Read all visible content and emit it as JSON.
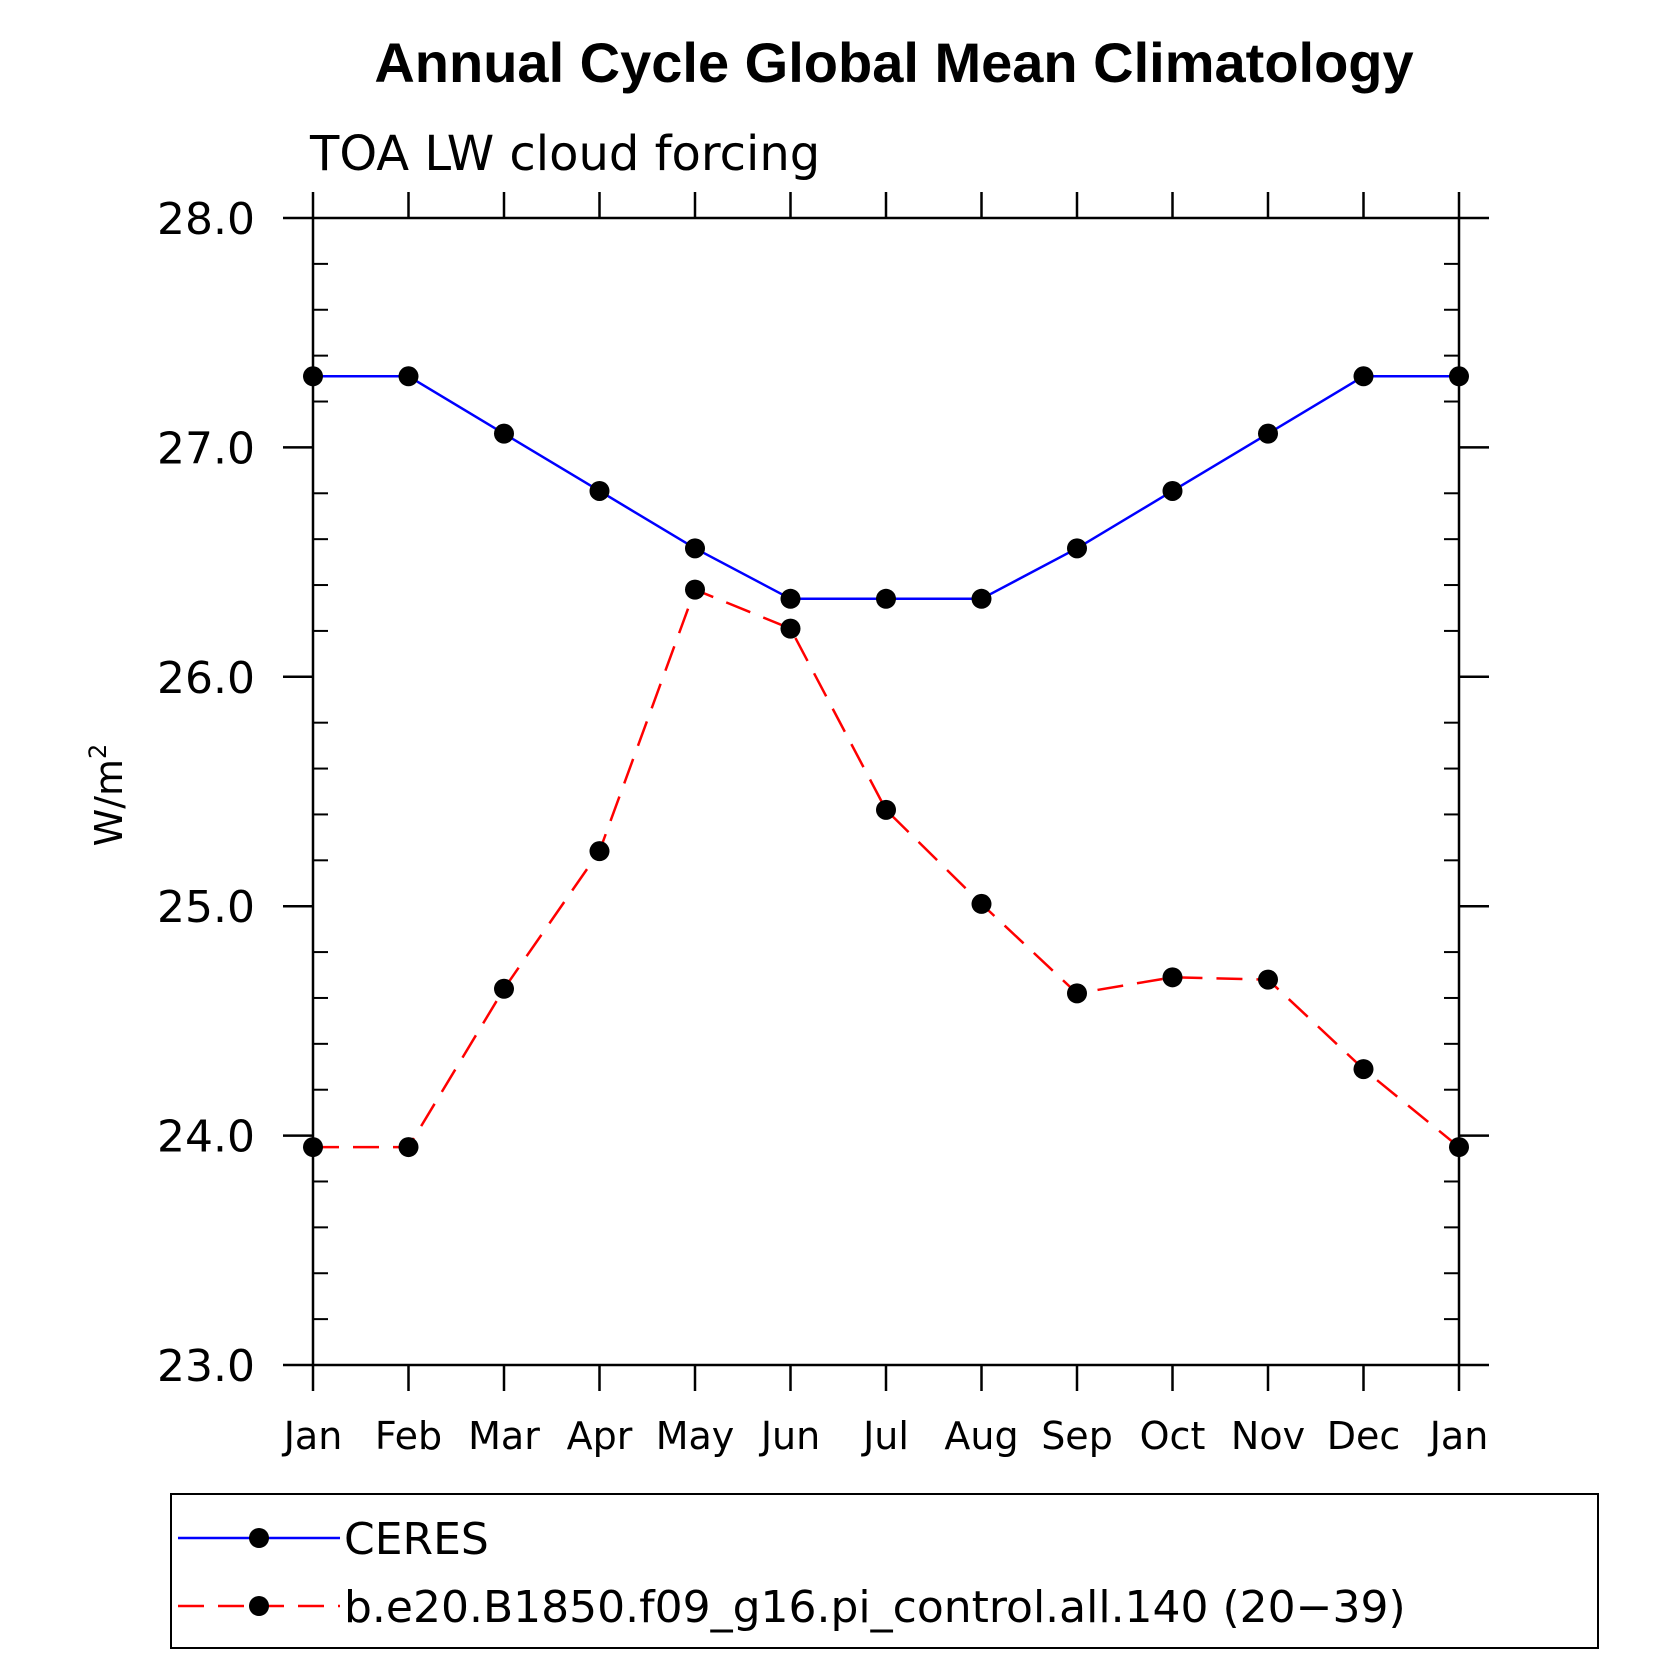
{
  "chart_data": {
    "type": "line",
    "title": "Annual Cycle Global Mean Climatology",
    "subtitle": "TOA LW cloud forcing",
    "ylabel": "W/m",
    "ylabel_sup": "2",
    "xlabel": "",
    "categories": [
      "Jan",
      "Feb",
      "Mar",
      "Apr",
      "May",
      "Jun",
      "Jul",
      "Aug",
      "Sep",
      "Oct",
      "Nov",
      "Dec",
      "Jan"
    ],
    "ylim": [
      23.0,
      28.0
    ],
    "yticks": [
      "23.0",
      "24.0",
      "25.0",
      "26.0",
      "27.0",
      "28.0"
    ],
    "grid": false,
    "legend_position": "bottom",
    "series": [
      {
        "name": "CERES",
        "color": "#0000ff",
        "line_style": "solid",
        "marker": "filled-circle",
        "values": [
          27.31,
          27.31,
          27.06,
          26.81,
          26.56,
          26.34,
          26.34,
          26.34,
          26.56,
          26.81,
          27.06,
          27.31,
          27.31
        ]
      },
      {
        "name": "b.e20.B1850.f09_g16.pi_control.all.140 (20−39)",
        "color": "#ff0000",
        "line_style": "dashed",
        "marker": "filled-circle",
        "values": [
          23.95,
          23.95,
          24.64,
          25.24,
          26.38,
          26.21,
          25.42,
          25.01,
          24.62,
          24.69,
          24.68,
          24.29,
          23.95
        ]
      }
    ]
  }
}
